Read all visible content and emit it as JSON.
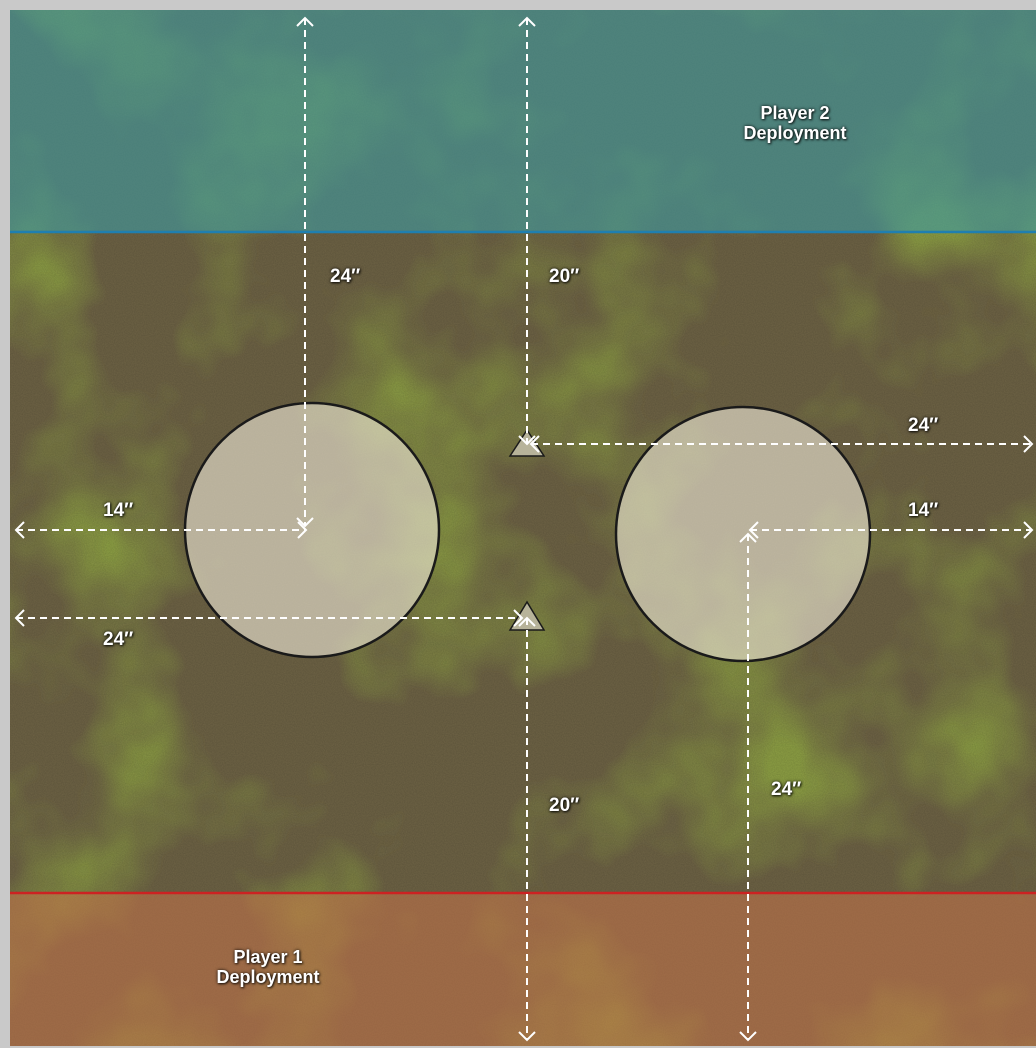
{
  "colors": {
    "player2_zone": "#3f9aa0",
    "player2_line": "#1f7fb0",
    "player1_zone": "#c8744a",
    "player1_line": "#cc2222",
    "objective_fill": "#efe9d6",
    "objective_stroke": "#1a1a1a",
    "marker_fill": "#b7b39a",
    "measure_line": "#ffffff"
  },
  "zones": {
    "player2": {
      "line1": "Player 2",
      "line2": "Deployment"
    },
    "player1": {
      "line1": "Player 1",
      "line2": "Deployment"
    }
  },
  "measurements": [
    {
      "id": "m-24-top-left",
      "label": "24″"
    },
    {
      "id": "m-20-top-center",
      "label": "20″"
    },
    {
      "id": "m-24-right-upper",
      "label": "24″"
    },
    {
      "id": "m-14-left",
      "label": "14″"
    },
    {
      "id": "m-14-right",
      "label": "14″"
    },
    {
      "id": "m-24-left-lower",
      "label": "24″"
    },
    {
      "id": "m-20-bottom-center",
      "label": "20″"
    },
    {
      "id": "m-24-bottom-right",
      "label": "24″"
    }
  ],
  "objectives": [
    {
      "id": "objective-left"
    },
    {
      "id": "objective-right"
    }
  ],
  "markers": [
    {
      "id": "marker-upper",
      "direction": "down"
    },
    {
      "id": "marker-lower",
      "direction": "up"
    }
  ]
}
